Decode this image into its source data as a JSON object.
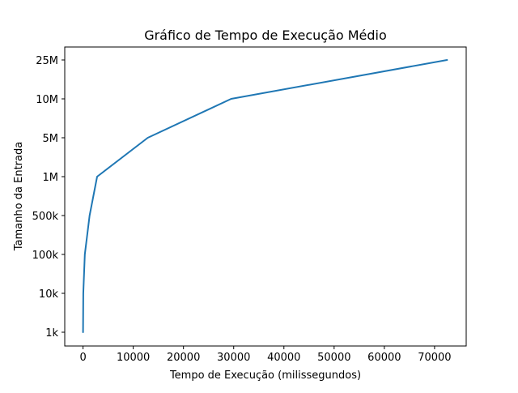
{
  "chart_data": {
    "type": "line",
    "title": "Gráfico de Tempo de Execução Médio",
    "xlabel": "Tempo de Execução (milissegundos)",
    "ylabel": "Tamanho da Entrada",
    "xlim": [
      -3640,
      76300
    ],
    "x_ticks": [
      0,
      10000,
      20000,
      30000,
      40000,
      50000,
      60000,
      70000
    ],
    "y_categories": [
      "1k",
      "10k",
      "100k",
      "500k",
      "1M",
      "5M",
      "10M",
      "25M"
    ],
    "grid": false,
    "legend": "none",
    "series": [
      {
        "x": [
          0,
          50,
          350,
          1300,
          2800,
          12900,
          29500,
          72500
        ],
        "y": [
          "1k",
          "10k",
          "100k",
          "500k",
          "1M",
          "5M",
          "10M",
          "25M"
        ],
        "color": "#1f77b4"
      }
    ]
  }
}
